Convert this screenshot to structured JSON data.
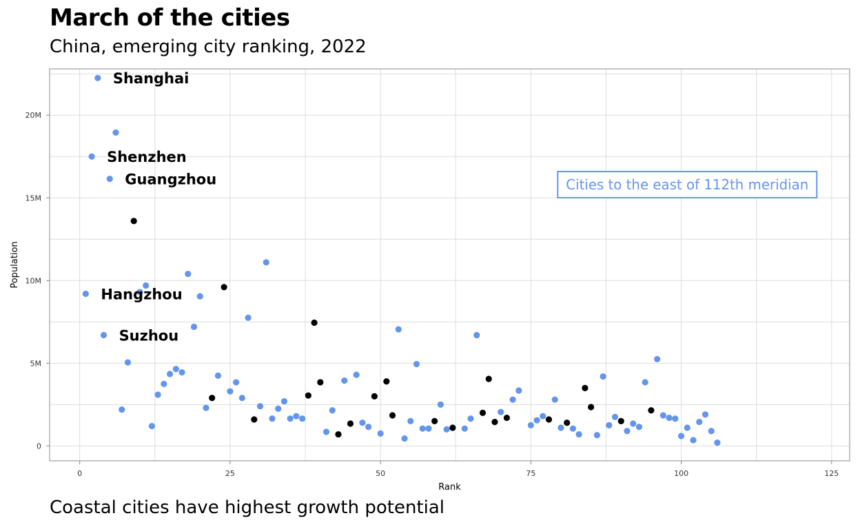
{
  "title": "March of the cities",
  "subtitle": "China, emerging city ranking, 2022",
  "caption": "Coastal cities have highest growth potential",
  "colors": {
    "east": "#6495ED",
    "other": "#000000",
    "grid": "#dcdcdc",
    "panel_border": "#b0b0b0"
  },
  "chart_data": {
    "type": "scatter",
    "xlabel": "Rank",
    "ylabel": "Population",
    "xlim": [
      -5,
      128
    ],
    "ylim": [
      -900000,
      22800000
    ],
    "x_ticks": [
      0,
      25,
      50,
      75,
      100,
      125
    ],
    "x_tick_labels": [
      "0",
      "25",
      "50",
      "75",
      "100",
      "125"
    ],
    "y_ticks": [
      0,
      5000000,
      10000000,
      15000000,
      20000000
    ],
    "y_tick_labels": [
      "0",
      "5M",
      "10M",
      "15M",
      "20M"
    ],
    "grid": true,
    "annotation": {
      "text": "Cities to the east of 112th meridian",
      "x": 101,
      "y": 15800000
    },
    "labels": [
      {
        "text": "Shanghai",
        "x": 3,
        "y": 22250000
      },
      {
        "text": "Shenzhen",
        "x": 2,
        "y": 17500000
      },
      {
        "text": "Guangzhou",
        "x": 5,
        "y": 16150000
      },
      {
        "text": "Hangzhou",
        "x": 1,
        "y": 9200000
      },
      {
        "text": "Suzhou",
        "x": 4,
        "y": 6700000
      }
    ],
    "series": [
      {
        "group": "east",
        "points": [
          [
            1,
            9200000
          ],
          [
            2,
            17500000
          ],
          [
            3,
            22250000
          ],
          [
            4,
            6700000
          ],
          [
            5,
            16150000
          ],
          [
            6,
            18950000
          ],
          [
            7,
            2200000
          ],
          [
            8,
            5050000
          ],
          [
            10,
            9300000
          ],
          [
            11,
            9700000
          ],
          [
            12,
            1200000
          ],
          [
            13,
            3100000
          ],
          [
            14,
            3750000
          ],
          [
            15,
            4350000
          ],
          [
            16,
            4650000
          ],
          [
            17,
            4450000
          ],
          [
            18,
            10400000
          ],
          [
            19,
            7200000
          ],
          [
            20,
            9050000
          ],
          [
            21,
            2300000
          ],
          [
            23,
            4250000
          ],
          [
            25,
            3300000
          ],
          [
            26,
            3850000
          ],
          [
            27,
            2900000
          ],
          [
            28,
            7750000
          ],
          [
            30,
            2400000
          ],
          [
            31,
            11100000
          ],
          [
            32,
            1650000
          ],
          [
            33,
            2250000
          ],
          [
            34,
            2700000
          ],
          [
            35,
            1650000
          ],
          [
            36,
            1800000
          ],
          [
            37,
            1650000
          ],
          [
            41,
            850000
          ],
          [
            42,
            2150000
          ],
          [
            44,
            3950000
          ],
          [
            46,
            4300000
          ],
          [
            47,
            1400000
          ],
          [
            48,
            1150000
          ],
          [
            50,
            750000
          ],
          [
            53,
            7050000
          ],
          [
            54,
            450000
          ],
          [
            55,
            1500000
          ],
          [
            56,
            4950000
          ],
          [
            57,
            1050000
          ],
          [
            58,
            1050000
          ],
          [
            60,
            2500000
          ],
          [
            61,
            1000000
          ],
          [
            64,
            1050000
          ],
          [
            65,
            1650000
          ],
          [
            66,
            6700000
          ],
          [
            70,
            2050000
          ],
          [
            72,
            2800000
          ],
          [
            73,
            3350000
          ],
          [
            75,
            1250000
          ],
          [
            76,
            1550000
          ],
          [
            77,
            1800000
          ],
          [
            79,
            2800000
          ],
          [
            80,
            1100000
          ],
          [
            82,
            1050000
          ],
          [
            83,
            700000
          ],
          [
            87,
            4200000
          ],
          [
            86,
            650000
          ],
          [
            88,
            1250000
          ],
          [
            89,
            1750000
          ],
          [
            91,
            900000
          ],
          [
            92,
            1350000
          ],
          [
            93,
            1150000
          ],
          [
            94,
            3850000
          ],
          [
            96,
            5250000
          ],
          [
            97,
            1850000
          ],
          [
            98,
            1700000
          ],
          [
            99,
            1650000
          ],
          [
            100,
            600000
          ],
          [
            101,
            1100000
          ],
          [
            102,
            350000
          ],
          [
            103,
            1450000
          ],
          [
            104,
            1900000
          ],
          [
            105,
            900000
          ],
          [
            106,
            200000
          ]
        ]
      },
      {
        "group": "other",
        "points": [
          [
            9,
            13600000
          ],
          [
            22,
            2900000
          ],
          [
            24,
            9600000
          ],
          [
            29,
            1600000
          ],
          [
            38,
            3050000
          ],
          [
            39,
            7450000
          ],
          [
            40,
            3850000
          ],
          [
            43,
            700000
          ],
          [
            45,
            1350000
          ],
          [
            49,
            3000000
          ],
          [
            51,
            3900000
          ],
          [
            52,
            1850000
          ],
          [
            59,
            1500000
          ],
          [
            62,
            1100000
          ],
          [
            67,
            2000000
          ],
          [
            68,
            4050000
          ],
          [
            69,
            1450000
          ],
          [
            71,
            1700000
          ],
          [
            78,
            1600000
          ],
          [
            81,
            1400000
          ],
          [
            84,
            3500000
          ],
          [
            85,
            2350000
          ],
          [
            90,
            1500000
          ],
          [
            95,
            2150000
          ]
        ]
      }
    ]
  }
}
